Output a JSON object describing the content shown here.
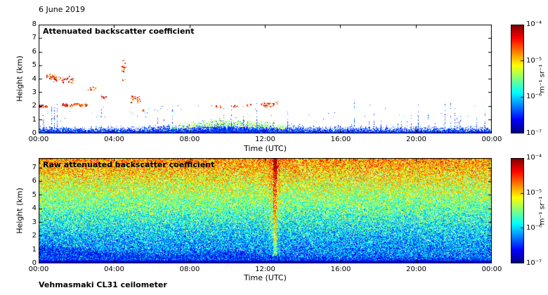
{
  "header": {
    "date": "6 June 2019"
  },
  "footer": {
    "instrument": "Vehmasmaki CL31 ceilometer"
  },
  "panels": [
    {
      "title": "Attenuated backscatter coefficient",
      "xlabel": "Time (UTC)",
      "ylabel": "Height (km)",
      "x_ticks": [
        "00:00",
        "04:00",
        "08:00",
        "12:00",
        "16:00",
        "20:00",
        "00:00"
      ],
      "y_ticks": [
        "0",
        "1",
        "2",
        "3",
        "4",
        "5",
        "6",
        "7",
        "8"
      ],
      "colorbar": {
        "ticks": [
          "10⁻⁴",
          "10⁻⁵",
          "10⁻⁶",
          "10⁻⁷"
        ],
        "label": "m⁻¹ sr⁻¹"
      }
    },
    {
      "title": "Raw attenuated backscatter coefficient",
      "xlabel": "Time (UTC)",
      "ylabel": "Height (km)",
      "x_ticks": [
        "00:00",
        "04:00",
        "08:00",
        "12:00",
        "16:00",
        "20:00",
        "00:00"
      ],
      "y_ticks": [
        "0",
        "1",
        "2",
        "3",
        "4",
        "5",
        "6",
        "7"
      ],
      "colorbar": {
        "ticks": [
          "10⁻⁴",
          "10⁻⁵",
          "10⁻⁶",
          "10⁻⁷"
        ],
        "label": "m⁻¹ sr⁻¹"
      }
    }
  ],
  "chart_data": [
    {
      "type": "heatmap",
      "panel": "top",
      "title": "Attenuated backscatter coefficient",
      "xlabel": "Time (UTC)",
      "ylabel": "Height (km)",
      "x_range_hours": [
        0,
        24
      ],
      "x_tick_labels": [
        "00:00",
        "04:00",
        "08:00",
        "12:00",
        "16:00",
        "20:00",
        "00:00"
      ],
      "y_range_km": [
        0,
        8
      ],
      "y_tick_labels": [
        "0",
        "1",
        "2",
        "3",
        "4",
        "5",
        "6",
        "7",
        "8"
      ],
      "colormap": "jet",
      "color_scale": "log10",
      "color_min": 1e-07,
      "color_max": 0.0001,
      "colorbar_tick_labels": [
        "10⁻⁴",
        "10⁻⁵",
        "10⁻⁶",
        "10⁻⁷"
      ],
      "colorbar_unit": "m⁻¹ sr⁻¹",
      "background": "white below color floor",
      "boundary_layer": {
        "description": "dense blue aerosol layer from the surface, top ~0.4-0.6 km most of the day, deepening to ~0.9-1.0 km with green tops between ~07:00 and 13:00",
        "base_top_km": 0.5,
        "midday_top_km": 1.0,
        "midday_peak_hour": 10
      },
      "spikes": "sparse thin blue columns up to 1-3 km, more frequent before 01:30 and after 15:00",
      "echo_clusters": [
        {
          "t": 0.2,
          "z": 1.95,
          "w": 0.5,
          "h": 0.15,
          "n": 20
        },
        {
          "t": 0.65,
          "z": 4.1,
          "w": 0.5,
          "h": 0.35,
          "n": 30
        },
        {
          "t": 1.3,
          "z": 3.9,
          "w": 1.1,
          "h": 0.5,
          "n": 40
        },
        {
          "t": 1.9,
          "z": 2.05,
          "w": 1.4,
          "h": 0.18,
          "n": 55
        },
        {
          "t": 2.75,
          "z": 3.2,
          "w": 0.5,
          "h": 0.3,
          "n": 10
        },
        {
          "t": 3.4,
          "z": 2.6,
          "w": 0.4,
          "h": 0.2,
          "n": 7
        },
        {
          "t": 4.5,
          "z": 4.6,
          "w": 0.22,
          "h": 1.5,
          "n": 20
        },
        {
          "t": 5.1,
          "z": 2.45,
          "w": 0.5,
          "h": 0.5,
          "n": 22
        },
        {
          "t": 5.5,
          "z": 1.6,
          "w": 0.2,
          "h": 0.15,
          "n": 5
        },
        {
          "t": 9.45,
          "z": 1.9,
          "w": 0.4,
          "h": 0.15,
          "n": 10
        },
        {
          "t": 10.35,
          "z": 1.95,
          "w": 0.3,
          "h": 0.12,
          "n": 7
        },
        {
          "t": 11.15,
          "z": 2.0,
          "w": 0.3,
          "h": 0.12,
          "n": 7
        },
        {
          "t": 12.1,
          "z": 2.05,
          "w": 0.7,
          "h": 0.3,
          "n": 30
        },
        {
          "t": 12.6,
          "z": 2.2,
          "w": 0.2,
          "h": 0.12,
          "n": 5
        }
      ]
    },
    {
      "type": "heatmap",
      "panel": "bottom",
      "title": "Raw attenuated backscatter coefficient",
      "xlabel": "Time (UTC)",
      "ylabel": "Height (km)",
      "x_range_hours": [
        0,
        24
      ],
      "x_tick_labels": [
        "00:00",
        "04:00",
        "08:00",
        "12:00",
        "16:00",
        "20:00",
        "00:00"
      ],
      "y_range_km": [
        0,
        7.7
      ],
      "y_tick_labels": [
        "0",
        "1",
        "2",
        "3",
        "4",
        "5",
        "6",
        "7"
      ],
      "colormap": "jet",
      "color_scale": "log10",
      "color_min": 1e-07,
      "color_max": 0.0001,
      "colorbar_tick_labels": [
        "10⁻⁴",
        "10⁻⁵",
        "10⁻⁶",
        "10⁻⁷"
      ],
      "colorbar_unit": "m⁻¹ sr⁻¹",
      "noise_profile": "full-field random speckle: dark blue near surface, blue/cyan below ~2 km, green/yellow 2-5.5 km, orange/red above ~5.5 km, scattered white holes",
      "dark_low_region": {
        "description": "dark blue low-signal band below ~1.3 km at 00:00 shrinking to ~0.5 km by 08:00, bump to ~1 km around 08:30-12:30, ~0.5 km afterwards"
      },
      "streak_hour_utc": 12.5
    }
  ]
}
